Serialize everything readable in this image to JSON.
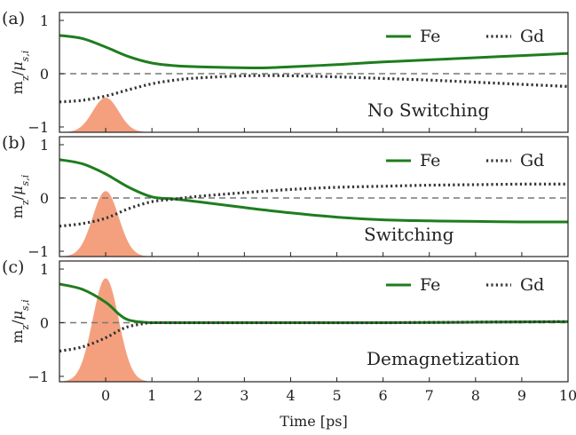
{
  "chart_data": [
    {
      "type": "line",
      "panel_label": "(a)",
      "annotation": "No Switching",
      "ylabel": "m_z/μ_s,i",
      "xlim": [
        -1,
        10
      ],
      "ylim": [
        -1.1,
        1.15
      ],
      "yticks": [
        "−1",
        "0",
        "1"
      ],
      "grid": false,
      "legend_position": "top-right",
      "series": [
        {
          "name": "Fe",
          "color": "#1e7d1e",
          "style": "solid",
          "x": [
            -1,
            -0.5,
            0,
            0.5,
            1,
            1.5,
            2,
            3,
            3.5,
            4,
            5,
            6,
            7,
            8,
            9,
            10
          ],
          "y": [
            0.72,
            0.66,
            0.5,
            0.32,
            0.2,
            0.15,
            0.13,
            0.11,
            0.11,
            0.13,
            0.17,
            0.22,
            0.26,
            0.3,
            0.34,
            0.38
          ]
        },
        {
          "name": "Gd",
          "color": "#333333",
          "style": "dotted",
          "x": [
            -1,
            -0.5,
            0,
            0.5,
            1,
            1.5,
            2,
            3,
            4,
            5,
            6,
            7,
            8,
            9,
            10
          ],
          "y": [
            -0.53,
            -0.5,
            -0.42,
            -0.3,
            -0.19,
            -0.12,
            -0.08,
            -0.04,
            -0.04,
            -0.06,
            -0.09,
            -0.12,
            -0.16,
            -0.2,
            -0.24
          ]
        }
      ],
      "pulse": {
        "color": "#f4a07e",
        "center": 0,
        "sigma": 0.28,
        "height": 0.65
      }
    },
    {
      "type": "line",
      "panel_label": "(b)",
      "annotation": "Switching",
      "ylabel": "m_z/μ_s,i",
      "xlim": [
        -1,
        10
      ],
      "ylim": [
        -1.1,
        1.15
      ],
      "yticks": [
        "−1",
        "0",
        "1"
      ],
      "grid": false,
      "legend_position": "top-right",
      "series": [
        {
          "name": "Fe",
          "color": "#1e7d1e",
          "style": "solid",
          "x": [
            -1,
            -0.5,
            0,
            0.5,
            1,
            1.5,
            2,
            3,
            4,
            5,
            6,
            7,
            8,
            9,
            10
          ],
          "y": [
            0.72,
            0.64,
            0.45,
            0.2,
            0.02,
            -0.02,
            -0.07,
            -0.18,
            -0.28,
            -0.36,
            -0.41,
            -0.43,
            -0.44,
            -0.45,
            -0.45
          ]
        },
        {
          "name": "Gd",
          "color": "#333333",
          "style": "dotted",
          "x": [
            -1,
            -0.5,
            0,
            0.5,
            1,
            1.5,
            2,
            3,
            4,
            5,
            6,
            7,
            8,
            9,
            10
          ],
          "y": [
            -0.53,
            -0.48,
            -0.38,
            -0.2,
            -0.07,
            -0.02,
            0.03,
            0.1,
            0.16,
            0.2,
            0.22,
            0.24,
            0.25,
            0.26,
            0.26
          ]
        }
      ],
      "pulse": {
        "color": "#f4a07e",
        "center": 0,
        "sigma": 0.28,
        "height": 1.23
      }
    },
    {
      "type": "line",
      "panel_label": "(c)",
      "annotation": "Demagnetization",
      "ylabel": "m_z/μ_s,i",
      "xlabel": "Time [ps]",
      "xlim": [
        -1,
        10
      ],
      "ylim": [
        -1.1,
        1.15
      ],
      "xticks": [
        "0",
        "1",
        "2",
        "3",
        "4",
        "5",
        "6",
        "7",
        "8",
        "9",
        "10"
      ],
      "yticks": [
        "−1",
        "0",
        "1"
      ],
      "grid": false,
      "legend_position": "top-right",
      "series": [
        {
          "name": "Fe",
          "color": "#1e7d1e",
          "style": "solid",
          "x": [
            -1,
            -0.5,
            0,
            0.3,
            0.5,
            0.8,
            1,
            1.5,
            2,
            4,
            6,
            8,
            10
          ],
          "y": [
            0.72,
            0.62,
            0.38,
            0.15,
            0.05,
            0.01,
            0.0,
            0.0,
            0.0,
            0.0,
            0.0,
            0.01,
            0.02
          ]
        },
        {
          "name": "Gd",
          "color": "#333333",
          "style": "dotted",
          "x": [
            -1,
            -0.5,
            0,
            0.3,
            0.5,
            0.8,
            1,
            1.5,
            2,
            4,
            6,
            8,
            10
          ],
          "y": [
            -0.53,
            -0.45,
            -0.28,
            -0.14,
            -0.07,
            -0.02,
            0.0,
            0.0,
            0.0,
            0.0,
            0.0,
            0.01,
            0.02
          ]
        }
      ],
      "pulse": {
        "color": "#f4a07e",
        "center": 0,
        "sigma": 0.28,
        "height": 1.93
      }
    }
  ]
}
